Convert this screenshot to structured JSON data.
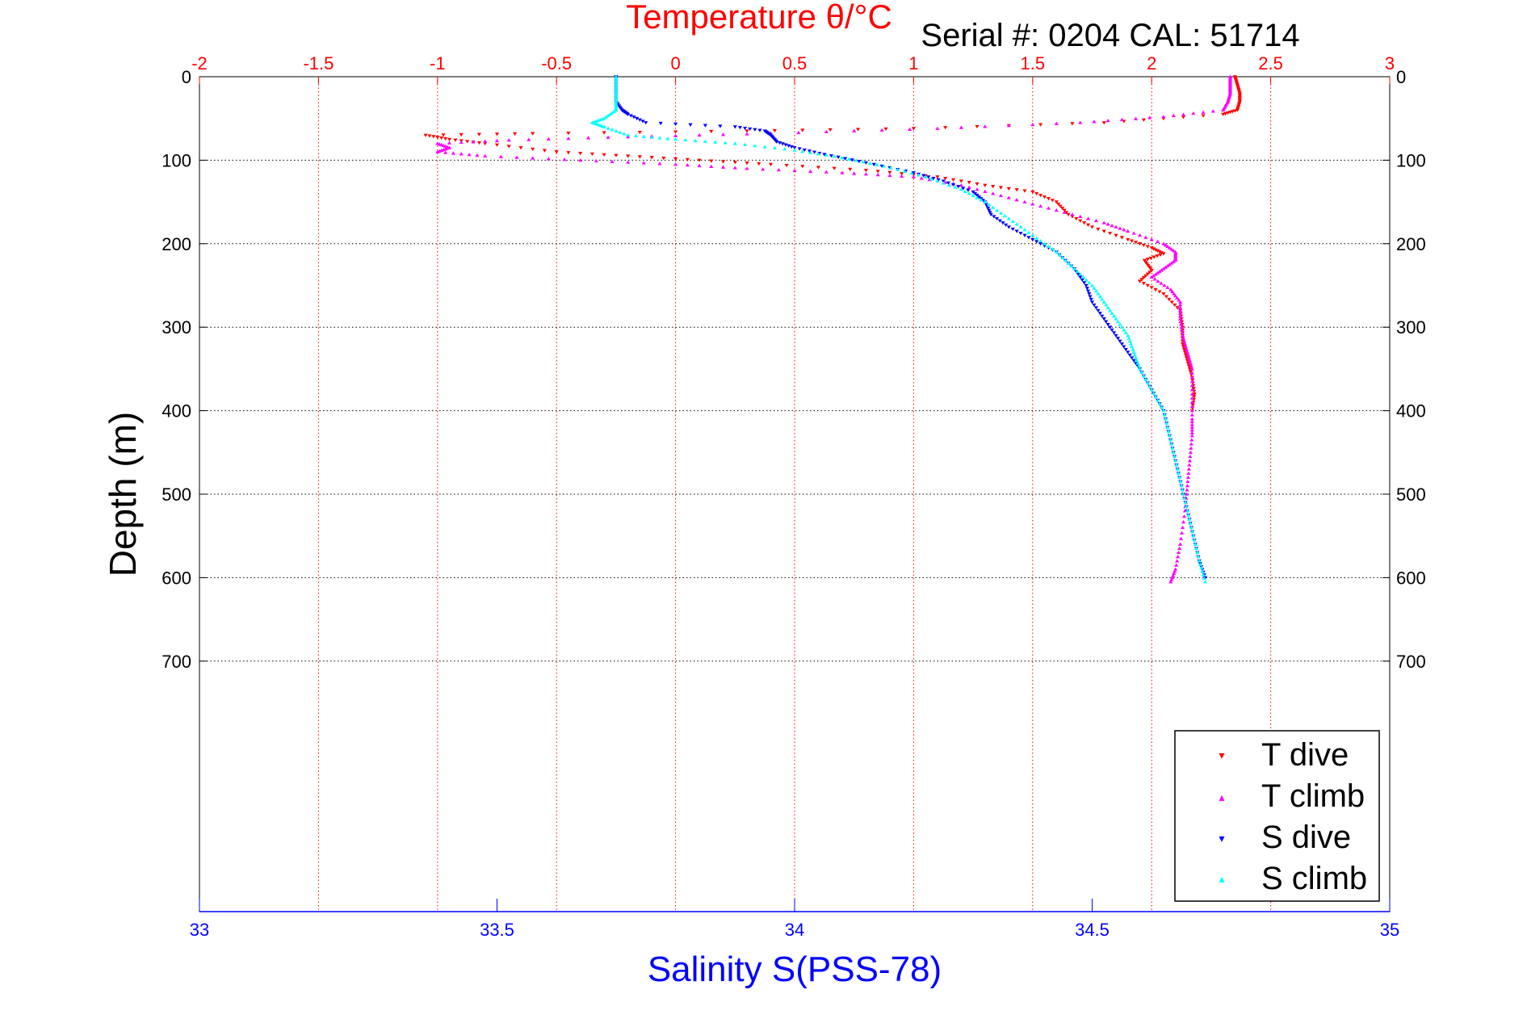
{
  "chart_data": {
    "type": "scatter",
    "title": "Temperature θ/°C",
    "subtitle": "Serial #: 0204  CAL: 51714",
    "xlabel_top": "Temperature θ/°C",
    "xlabel_bottom": "Salinity S(PSS-78)",
    "ylabel": "Depth (m)",
    "x_top_lim": [
      -2,
      3
    ],
    "x_top_ticks": [
      "-2",
      "-1.5",
      "-1",
      "-0.5",
      "0",
      "0.5",
      "1",
      "1.5",
      "2",
      "2.5",
      "3"
    ],
    "x_bottom_lim": [
      33,
      35
    ],
    "x_bottom_ticks": [
      "33",
      "33.5",
      "34",
      "34.5",
      "35"
    ],
    "y_lim": [
      0,
      1000
    ],
    "y_ticks": [
      "0",
      "100",
      "200",
      "300",
      "400",
      "500",
      "600",
      "700"
    ],
    "y_reversed": true,
    "grid": true,
    "legend_position": "bottom-right",
    "colors": {
      "t_dive": "#ff0000",
      "t_climb": "#ff00ff",
      "s_dive": "#0000ff",
      "s_climb": "#00ffff",
      "top_axis": "#ff0000",
      "bottom_axis": "#0000ff"
    },
    "series": [
      {
        "name": "T dive",
        "axis": "temperature",
        "points": [
          [
            2.35,
            0
          ],
          [
            2.36,
            10
          ],
          [
            2.37,
            20
          ],
          [
            2.37,
            30
          ],
          [
            2.36,
            40
          ],
          [
            2.3,
            45
          ],
          [
            1.8,
            55
          ],
          [
            1.0,
            62
          ],
          [
            0.3,
            65
          ],
          [
            -0.6,
            68
          ],
          [
            -1.05,
            70
          ],
          [
            -0.95,
            75
          ],
          [
            -0.8,
            80
          ],
          [
            -0.5,
            90
          ],
          [
            -0.2,
            95
          ],
          [
            0.1,
            100
          ],
          [
            0.4,
            105
          ],
          [
            0.8,
            112
          ],
          [
            1.1,
            120
          ],
          [
            1.3,
            130
          ],
          [
            1.5,
            138
          ],
          [
            1.6,
            150
          ],
          [
            1.65,
            165
          ],
          [
            1.75,
            180
          ],
          [
            1.9,
            195
          ],
          [
            2.0,
            205
          ],
          [
            2.05,
            212
          ],
          [
            1.97,
            220
          ],
          [
            2.0,
            232
          ],
          [
            1.95,
            245
          ],
          [
            2.05,
            260
          ],
          [
            2.12,
            280
          ],
          [
            2.13,
            300
          ],
          [
            2.13,
            320
          ],
          [
            2.15,
            340
          ],
          [
            2.17,
            360
          ],
          [
            2.18,
            380
          ],
          [
            2.17,
            400
          ]
        ]
      },
      {
        "name": "T climb",
        "axis": "temperature",
        "points": [
          [
            2.33,
            0
          ],
          [
            2.33,
            10
          ],
          [
            2.33,
            20
          ],
          [
            2.32,
            30
          ],
          [
            2.3,
            40
          ],
          [
            2.05,
            48
          ],
          [
            1.7,
            55
          ],
          [
            1.1,
            62
          ],
          [
            0.4,
            68
          ],
          [
            -0.2,
            72
          ],
          [
            -0.7,
            76
          ],
          [
            -1.0,
            80
          ],
          [
            -0.95,
            85
          ],
          [
            -1.0,
            90
          ],
          [
            -0.8,
            95
          ],
          [
            -0.4,
            100
          ],
          [
            0.0,
            105
          ],
          [
            0.3,
            110
          ],
          [
            0.7,
            115
          ],
          [
            1.0,
            120
          ],
          [
            1.2,
            130
          ],
          [
            1.4,
            145
          ],
          [
            1.6,
            160
          ],
          [
            1.8,
            175
          ],
          [
            1.9,
            185
          ],
          [
            2.05,
            200
          ],
          [
            2.1,
            210
          ],
          [
            2.1,
            220
          ],
          [
            2.05,
            230
          ],
          [
            2.0,
            240
          ],
          [
            2.08,
            255
          ],
          [
            2.12,
            270
          ],
          [
            2.12,
            290
          ],
          [
            2.13,
            310
          ],
          [
            2.15,
            330
          ],
          [
            2.17,
            350
          ],
          [
            2.17,
            380
          ],
          [
            2.17,
            410
          ],
          [
            2.17,
            430
          ],
          [
            2.16,
            460
          ],
          [
            2.15,
            490
          ],
          [
            2.14,
            520
          ],
          [
            2.12,
            560
          ],
          [
            2.1,
            590
          ],
          [
            2.08,
            605
          ]
        ]
      },
      {
        "name": "S dive",
        "axis": "salinity",
        "points": [
          [
            33.7,
            0
          ],
          [
            33.7,
            15
          ],
          [
            33.7,
            30
          ],
          [
            33.71,
            40
          ],
          [
            33.72,
            45
          ],
          [
            33.75,
            55
          ],
          [
            33.9,
            60
          ],
          [
            33.95,
            65
          ],
          [
            33.96,
            70
          ],
          [
            33.97,
            78
          ],
          [
            34.0,
            85
          ],
          [
            34.05,
            93
          ],
          [
            34.12,
            103
          ],
          [
            34.2,
            115
          ],
          [
            34.25,
            125
          ],
          [
            34.3,
            138
          ],
          [
            34.32,
            150
          ],
          [
            34.33,
            165
          ],
          [
            34.36,
            180
          ],
          [
            34.4,
            195
          ],
          [
            34.44,
            210
          ],
          [
            34.47,
            230
          ],
          [
            34.49,
            250
          ],
          [
            34.5,
            270
          ],
          [
            34.52,
            290
          ],
          [
            34.54,
            310
          ],
          [
            34.56,
            330
          ],
          [
            34.58,
            350
          ],
          [
            34.6,
            375
          ],
          [
            34.62,
            400
          ],
          [
            34.63,
            430
          ],
          [
            34.64,
            460
          ],
          [
            34.65,
            490
          ],
          [
            34.66,
            520
          ],
          [
            34.67,
            550
          ],
          [
            34.68,
            580
          ],
          [
            34.69,
            600
          ]
        ]
      },
      {
        "name": "S climb",
        "axis": "salinity",
        "points": [
          [
            33.7,
            0
          ],
          [
            33.7,
            15
          ],
          [
            33.7,
            30
          ],
          [
            33.7,
            40
          ],
          [
            33.68,
            50
          ],
          [
            33.66,
            55
          ],
          [
            33.68,
            60
          ],
          [
            33.72,
            70
          ],
          [
            33.8,
            75
          ],
          [
            33.9,
            80
          ],
          [
            34.0,
            88
          ],
          [
            34.08,
            97
          ],
          [
            34.15,
            107
          ],
          [
            34.22,
            120
          ],
          [
            34.28,
            135
          ],
          [
            34.32,
            150
          ],
          [
            34.36,
            170
          ],
          [
            34.4,
            190
          ],
          [
            34.44,
            210
          ],
          [
            34.47,
            230
          ],
          [
            34.5,
            250
          ],
          [
            34.52,
            270
          ],
          [
            34.54,
            290
          ],
          [
            34.56,
            310
          ],
          [
            34.57,
            330
          ],
          [
            34.58,
            350
          ],
          [
            34.6,
            375
          ],
          [
            34.62,
            400
          ],
          [
            34.63,
            430
          ],
          [
            34.64,
            460
          ],
          [
            34.65,
            490
          ],
          [
            34.66,
            520
          ],
          [
            34.67,
            550
          ],
          [
            34.68,
            580
          ],
          [
            34.69,
            605
          ]
        ]
      }
    ]
  }
}
